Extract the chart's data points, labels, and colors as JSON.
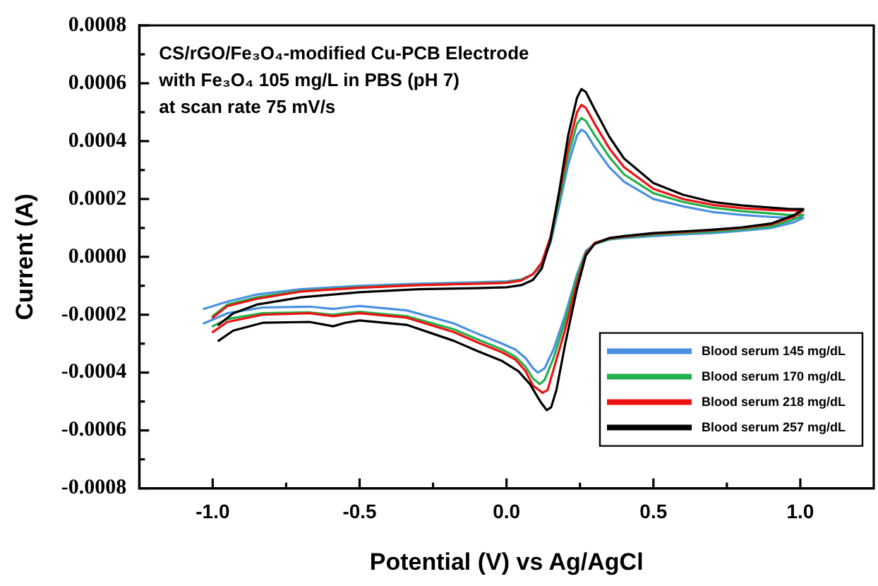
{
  "chart_data": {
    "type": "line",
    "xlabel": "Potential (V) vs Ag/AgCl",
    "ylabel": "Current (A)",
    "annotations": [
      "CS/rGO/Fe₃O₄-modified Cu-PCB Electrode",
      "with Fe₃O₄ 105 mg/L in PBS (pH 7)",
      "at scan rate 75 mV/s"
    ],
    "xlim": [
      -1.25,
      1.25
    ],
    "xticks": [
      {
        "value": -1.0,
        "label": "-1.0"
      },
      {
        "value": -0.75,
        "label": null
      },
      {
        "value": -0.5,
        "label": "-0.5"
      },
      {
        "value": -0.25,
        "label": null
      },
      {
        "value": 0,
        "label": "0.0"
      },
      {
        "value": 0.25,
        "label": null
      },
      {
        "value": 0.5,
        "label": "0.5"
      },
      {
        "value": 0.75,
        "label": null
      },
      {
        "value": 1.0,
        "label": "1.0"
      }
    ],
    "ylim": [
      -0.0008,
      0.0008
    ],
    "yticks": [
      {
        "value": -0.0008,
        "label": "-0.0008"
      },
      {
        "value": -0.0007,
        "label": null
      },
      {
        "value": -0.0006,
        "label": "-0.0006"
      },
      {
        "value": -0.0005,
        "label": null
      },
      {
        "value": -0.0004,
        "label": "-0.0004"
      },
      {
        "value": -0.0003,
        "label": null
      },
      {
        "value": -0.0002,
        "label": "-0.0002"
      },
      {
        "value": -0.0001,
        "label": null
      },
      {
        "value": 0,
        "label": "0.0000"
      },
      {
        "value": 0.0001,
        "label": null
      },
      {
        "value": 0.0002,
        "label": "0.0002"
      },
      {
        "value": 0.0003,
        "label": null
      },
      {
        "value": 0.0004,
        "label": "0.0004"
      },
      {
        "value": 0.0005,
        "label": null
      },
      {
        "value": 0.0006,
        "label": "0.0006"
      },
      {
        "value": 0.0007,
        "label": null
      },
      {
        "value": 0.0008,
        "label": "0.0008"
      }
    ],
    "grid": false,
    "legend": "bottom right",
    "marker": "none",
    "line_style": "solid",
    "series": [
      {
        "name": "Blood serum 145 mg/dL",
        "color": "#4a90e2",
        "x": [
          -1.03,
          -0.95,
          -0.85,
          -0.7,
          -0.5,
          -0.3,
          -0.1,
          0.0,
          0.05,
          0.09,
          0.12,
          0.15,
          0.18,
          0.21,
          0.24,
          0.255,
          0.27,
          0.3,
          0.35,
          0.4,
          0.5,
          0.6,
          0.7,
          0.8,
          0.9,
          0.96,
          1.01,
          0.98,
          0.9,
          0.8,
          0.7,
          0.6,
          0.5,
          0.4,
          0.35,
          0.3,
          0.27,
          0.24,
          0.2,
          0.16,
          0.13,
          0.107,
          0.09,
          0.065,
          0.03,
          -0.015,
          -0.1,
          -0.18,
          -0.34,
          -0.5,
          -0.55,
          -0.59,
          -0.67,
          -0.83,
          -0.95,
          -1.03
        ],
        "values": [
          -0.00018,
          -0.000155,
          -0.00013,
          -0.000112,
          -0.0001,
          -9.3e-05,
          -8.8e-05,
          -8.5e-05,
          -7.8e-05,
          -6e-05,
          -3e-05,
          5e-05,
          0.00018,
          0.00032,
          0.00042,
          0.00044,
          0.00043,
          0.00038,
          0.00031,
          0.00026,
          0.0002,
          0.000175,
          0.000155,
          0.000145,
          0.000138,
          0.000135,
          0.000135,
          0.00012,
          0.0001,
          9e-05,
          8.2e-05,
          7.8e-05,
          7.2e-05,
          6.5e-05,
          6e-05,
          4.5e-05,
          2e-05,
          -6e-05,
          -0.0002,
          -0.00032,
          -0.000385,
          -0.0004,
          -0.000385,
          -0.00035,
          -0.00032,
          -0.0003,
          -0.000265,
          -0.00023,
          -0.000185,
          -0.00017,
          -0.000175,
          -0.00018,
          -0.000172,
          -0.000175,
          -0.000195,
          -0.00023
        ]
      },
      {
        "name": "Blood serum 170 mg/dL",
        "color": "#22b14c",
        "x": [
          -1.0,
          -0.95,
          -0.85,
          -0.7,
          -0.5,
          -0.3,
          -0.1,
          0.0,
          0.05,
          0.09,
          0.12,
          0.15,
          0.18,
          0.21,
          0.24,
          0.255,
          0.27,
          0.3,
          0.35,
          0.4,
          0.5,
          0.6,
          0.7,
          0.8,
          0.9,
          0.96,
          1.01,
          0.98,
          0.9,
          0.8,
          0.7,
          0.6,
          0.5,
          0.4,
          0.35,
          0.3,
          0.27,
          0.24,
          0.2,
          0.16,
          0.13,
          0.113,
          0.09,
          0.065,
          0.03,
          -0.015,
          -0.1,
          -0.18,
          -0.34,
          -0.5,
          -0.55,
          -0.59,
          -0.67,
          -0.83,
          -0.95,
          -1.0
        ],
        "values": [
          -0.000205,
          -0.000165,
          -0.00014,
          -0.000118,
          -0.000105,
          -9.7e-05,
          -9.2e-05,
          -8.8e-05,
          -8e-05,
          -6e-05,
          -2.5e-05,
          6e-05,
          0.0002,
          0.00035,
          0.00046,
          0.00048,
          0.00047,
          0.00042,
          0.000345,
          0.000285,
          0.00022,
          0.00019,
          0.00017,
          0.000158,
          0.00015,
          0.000145,
          0.000145,
          0.00013,
          0.000105,
          9.5e-05,
          8.7e-05,
          8.2e-05,
          7.6e-05,
          6.8e-05,
          6.2e-05,
          4.5e-05,
          1.5e-05,
          -7e-05,
          -0.00022,
          -0.00035,
          -0.000425,
          -0.00044,
          -0.00042,
          -0.00038,
          -0.000345,
          -0.00032,
          -0.000285,
          -0.00025,
          -0.000205,
          -0.00019,
          -0.000195,
          -0.0002,
          -0.000192,
          -0.000195,
          -0.000215,
          -0.00024
        ]
      },
      {
        "name": "Blood serum 218 mg/dL",
        "color": "#ee1111",
        "x": [
          -1.0,
          -0.95,
          -0.85,
          -0.7,
          -0.5,
          -0.3,
          -0.1,
          0.0,
          0.05,
          0.09,
          0.12,
          0.15,
          0.18,
          0.21,
          0.24,
          0.255,
          0.27,
          0.3,
          0.35,
          0.4,
          0.5,
          0.6,
          0.7,
          0.8,
          0.9,
          0.96,
          1.01,
          0.98,
          0.9,
          0.8,
          0.7,
          0.6,
          0.5,
          0.4,
          0.35,
          0.3,
          0.27,
          0.24,
          0.2,
          0.16,
          0.14,
          0.123,
          0.09,
          0.065,
          0.03,
          -0.015,
          -0.1,
          -0.18,
          -0.34,
          -0.5,
          -0.55,
          -0.59,
          -0.67,
          -0.83,
          -0.95,
          -1.0
        ],
        "values": [
          -0.00021,
          -0.00017,
          -0.000145,
          -0.00012,
          -0.000107,
          -9.8e-05,
          -9.3e-05,
          -9e-05,
          -8.2e-05,
          -6e-05,
          -2e-05,
          7e-05,
          0.00022,
          0.00038,
          0.0005,
          0.000525,
          0.000515,
          0.00046,
          0.000375,
          0.00031,
          0.000235,
          0.0002,
          0.00018,
          0.000168,
          0.000162,
          0.00016,
          0.00016,
          0.00014,
          0.000112,
          0.0001,
          9.2e-05,
          8.6e-05,
          8e-05,
          7e-05,
          6.4e-05,
          4.8e-05,
          1e-05,
          -9e-05,
          -0.00025,
          -0.00039,
          -0.00046,
          -0.00047,
          -0.000445,
          -0.000395,
          -0.000355,
          -0.00033,
          -0.000295,
          -0.00026,
          -0.00021,
          -0.000195,
          -0.0002,
          -0.000205,
          -0.000195,
          -0.0002,
          -0.000225,
          -0.00026
        ]
      },
      {
        "name": "Blood serum 257 mg/dL",
        "color": "#000000",
        "x": [
          -0.98,
          -0.93,
          -0.85,
          -0.7,
          -0.5,
          -0.3,
          -0.1,
          0.0,
          0.05,
          0.09,
          0.12,
          0.15,
          0.18,
          0.21,
          0.24,
          0.255,
          0.27,
          0.3,
          0.35,
          0.4,
          0.5,
          0.6,
          0.7,
          0.8,
          0.9,
          0.96,
          1.01,
          0.98,
          0.9,
          0.8,
          0.7,
          0.6,
          0.5,
          0.4,
          0.35,
          0.3,
          0.27,
          0.24,
          0.2,
          0.17,
          0.152,
          0.137,
          0.115,
          0.08,
          0.04,
          -0.015,
          -0.1,
          -0.18,
          -0.34,
          -0.5,
          -0.55,
          -0.59,
          -0.67,
          -0.83,
          -0.93,
          -0.98
        ],
        "values": [
          -0.000235,
          -0.000195,
          -0.000165,
          -0.00014,
          -0.000122,
          -0.000112,
          -0.000108,
          -0.000105,
          -9.8e-05,
          -8e-05,
          -4e-05,
          6e-05,
          0.00023,
          0.00042,
          0.00055,
          0.00058,
          0.00057,
          0.00051,
          0.000415,
          0.00034,
          0.000255,
          0.000215,
          0.00019,
          0.000178,
          0.00017,
          0.000166,
          0.000165,
          0.000145,
          0.000115,
          0.000102,
          9.4e-05,
          8.8e-05,
          8.2e-05,
          7.2e-05,
          6.5e-05,
          4.5e-05,
          5e-06,
          -0.00011,
          -0.0003,
          -0.00046,
          -0.00052,
          -0.00053,
          -0.0005,
          -0.00044,
          -0.000395,
          -0.00036,
          -0.000325,
          -0.00029,
          -0.000235,
          -0.00022,
          -0.000228,
          -0.00024,
          -0.000225,
          -0.000228,
          -0.000255,
          -0.00029
        ]
      }
    ]
  }
}
